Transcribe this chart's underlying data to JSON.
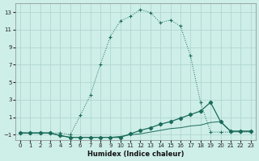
{
  "xlabel": "Humidex (Indice chaleur)",
  "bg_color": "#ceeee8",
  "grid_color": "#b0d8d0",
  "line_color": "#1a6b5a",
  "xlim": [
    -0.5,
    23.5
  ],
  "ylim": [
    -1.6,
    14.0
  ],
  "xticks": [
    0,
    1,
    2,
    3,
    4,
    5,
    6,
    7,
    8,
    9,
    10,
    11,
    12,
    13,
    14,
    15,
    16,
    17,
    18,
    19,
    20,
    21,
    22,
    23
  ],
  "yticks": [
    -1,
    1,
    3,
    5,
    7,
    9,
    11,
    13
  ],
  "curve1_x": [
    0,
    1,
    2,
    3,
    4,
    5,
    6,
    7,
    8,
    9,
    10,
    11,
    12,
    13,
    14,
    15,
    16,
    17,
    18,
    19,
    20,
    21,
    22,
    23
  ],
  "curve1_y": [
    -0.8,
    -0.8,
    -0.8,
    -0.8,
    -0.8,
    -1.0,
    1.2,
    3.5,
    7.0,
    10.2,
    12.0,
    12.5,
    13.3,
    12.95,
    11.8,
    12.1,
    11.4,
    8.0,
    2.7,
    -0.7,
    -0.7,
    -0.7,
    -0.7,
    -0.7
  ],
  "curve2_x": [
    0,
    1,
    2,
    3,
    4,
    5,
    6,
    7,
    8,
    9,
    10,
    11,
    12,
    13,
    14,
    15,
    16,
    17,
    18,
    19,
    20,
    21,
    22,
    23
  ],
  "curve2_y": [
    -0.8,
    -0.8,
    -0.8,
    -0.8,
    -1.1,
    -1.3,
    -1.3,
    -1.3,
    -1.3,
    -1.3,
    -1.3,
    -0.9,
    -0.5,
    -0.2,
    0.2,
    0.5,
    0.9,
    1.3,
    1.7,
    2.7,
    0.5,
    -0.6,
    -0.6,
    -0.6
  ],
  "curve3_x": [
    0,
    1,
    2,
    3,
    4,
    5,
    6,
    7,
    8,
    9,
    10,
    11,
    12,
    13,
    14,
    15,
    16,
    17,
    18,
    19,
    20,
    21,
    22,
    23
  ],
  "curve3_y": [
    -0.8,
    -0.8,
    -0.8,
    -0.8,
    -1.1,
    -1.3,
    -1.3,
    -1.3,
    -1.3,
    -1.3,
    -1.2,
    -1.0,
    -0.9,
    -0.7,
    -0.5,
    -0.3,
    -0.2,
    0.0,
    0.1,
    0.4,
    0.5,
    -0.6,
    -0.6,
    -0.6
  ]
}
